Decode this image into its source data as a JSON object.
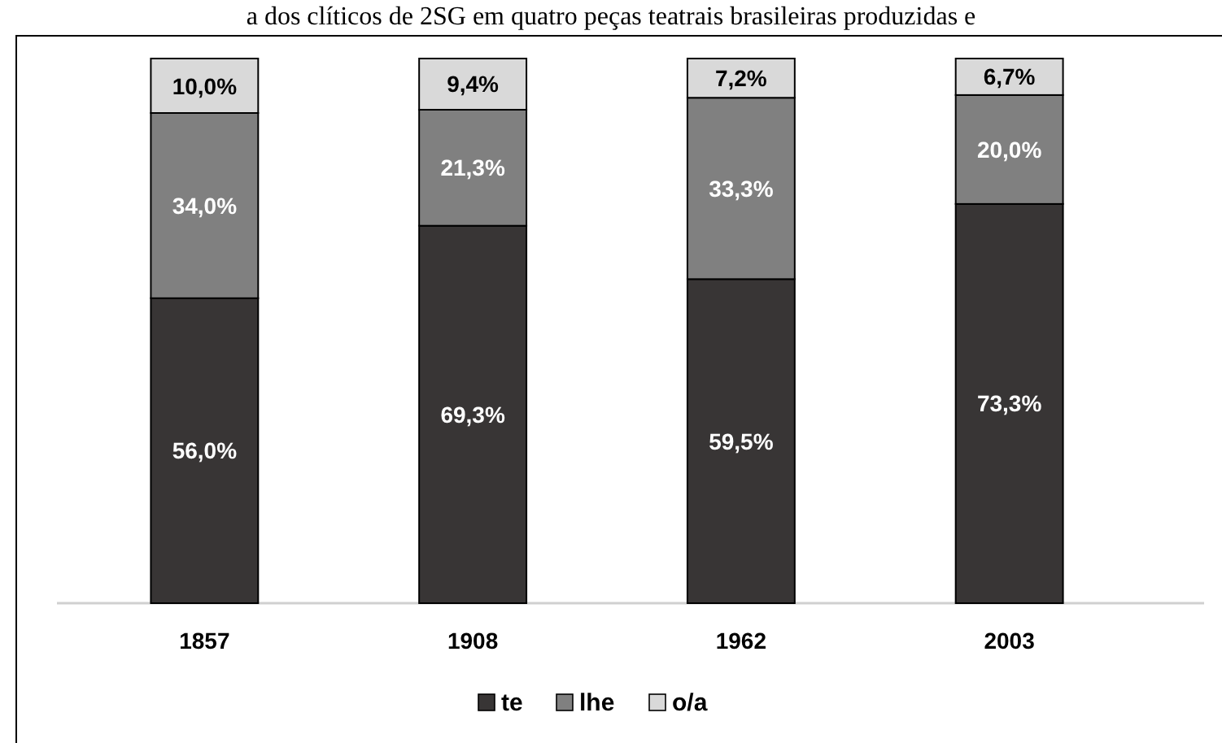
{
  "chart_data": {
    "type": "bar",
    "title": "a dos clíticos de 2SG em quatro peças teatrais brasileiras produzidas e",
    "categories": [
      "1857",
      "1908",
      "1962",
      "2003"
    ],
    "stacked": true,
    "legend": "bottom",
    "series": [
      {
        "name": "te",
        "color": "#383535",
        "values": [
          56.0,
          69.3,
          59.5,
          73.3
        ],
        "value_labels": [
          "56,0%",
          "69,3%",
          "59,5%",
          "73,3%"
        ]
      },
      {
        "name": "lhe",
        "color": "#808080",
        "values": [
          34.0,
          21.3,
          33.3,
          20.0
        ],
        "value_labels": [
          "34,0%",
          "21,3%",
          "33,3%",
          "20,0%"
        ]
      },
      {
        "name": "o/a",
        "color": "#d9d9d9",
        "values": [
          10.0,
          9.4,
          7.2,
          6.7
        ],
        "value_labels": [
          "10,0%",
          "9,4%",
          "7,2%",
          "6,7%"
        ]
      }
    ]
  }
}
